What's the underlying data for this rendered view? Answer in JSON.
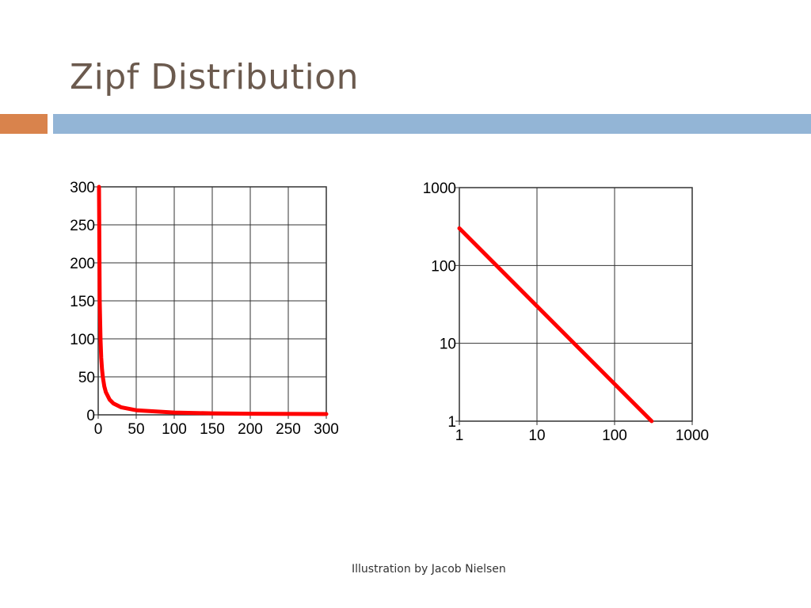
{
  "slide": {
    "title": "Zipf Distribution",
    "caption": "Illustration by Jacob Nielsen",
    "colors": {
      "title": "#6b5a4e",
      "accent_orange": "#d9834c",
      "accent_blue": "#93b5d6",
      "curve": "#ff0000",
      "grid": "#333333"
    }
  },
  "chart_data": [
    {
      "type": "line",
      "title": "",
      "xlabel": "",
      "ylabel": "",
      "xlim": [
        0,
        300
      ],
      "ylim": [
        0,
        300
      ],
      "xticks": [
        0,
        50,
        100,
        150,
        200,
        250,
        300
      ],
      "yticks": [
        0,
        50,
        100,
        150,
        200,
        250,
        300
      ],
      "xticklabels": [
        "0",
        "50",
        "100",
        "150",
        "200",
        "250",
        "300"
      ],
      "yticklabels": [
        "0",
        "50",
        "100",
        "150",
        "200",
        "250",
        "300"
      ],
      "grid": true,
      "series": [
        {
          "x": [
            1,
            2,
            3,
            4,
            5,
            6,
            8,
            10,
            15,
            20,
            30,
            50,
            100,
            150,
            200,
            300
          ],
          "y": [
            300,
            150,
            100,
            75,
            60,
            50,
            37.5,
            30,
            20,
            15,
            10,
            6,
            3,
            2,
            1.5,
            1
          ]
        }
      ]
    },
    {
      "type": "line",
      "title": "",
      "xlabel": "",
      "ylabel": "",
      "xscale": "log",
      "yscale": "log",
      "xlim": [
        1,
        1000
      ],
      "ylim": [
        1,
        1000
      ],
      "xticks": [
        1,
        10,
        100,
        1000
      ],
      "yticks": [
        1,
        10,
        100,
        1000
      ],
      "xticklabels": [
        "1",
        "10",
        "100",
        "1000"
      ],
      "yticklabels": [
        "1",
        "10",
        "100",
        "1000"
      ],
      "grid": true,
      "series": [
        {
          "x": [
            1,
            300
          ],
          "y": [
            300,
            1
          ]
        }
      ]
    }
  ]
}
